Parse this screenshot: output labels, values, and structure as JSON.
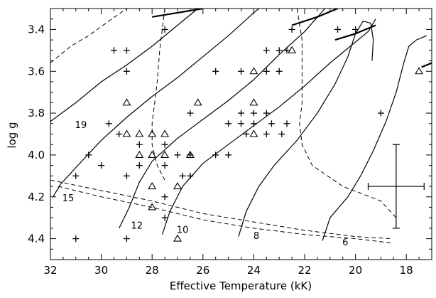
{
  "chart_data": {
    "type": "scatter",
    "title": "",
    "xlabel": "Effective Temperature (kK)",
    "ylabel": "log g",
    "xlim": [
      32,
      17
    ],
    "ylim": [
      3.3,
      4.5
    ],
    "x_reversed": true,
    "y_reversed": true,
    "x_ticks": [
      32,
      30,
      28,
      26,
      24,
      22,
      20,
      18
    ],
    "y_ticks": [
      3.4,
      3.6,
      3.8,
      4.0,
      4.2,
      4.4
    ],
    "y_tick_labels": [
      "3.4",
      "3.6",
      "3.8",
      "4.0",
      "4.2",
      "4.4"
    ],
    "grid": false,
    "legend": "none",
    "series": [
      {
        "marker": "plus",
        "points": [
          [
            29.5,
            3.5
          ],
          [
            29.0,
            3.5
          ],
          [
            29.0,
            3.6
          ],
          [
            27.5,
            3.4
          ],
          [
            22.5,
            3.4
          ],
          [
            23.0,
            3.5
          ],
          [
            22.7,
            3.5
          ],
          [
            20.7,
            3.4
          ],
          [
            20.0,
            3.4
          ],
          [
            23.5,
            3.5
          ],
          [
            25.5,
            3.6
          ],
          [
            24.5,
            3.6
          ],
          [
            23.5,
            3.6
          ],
          [
            23.0,
            3.6
          ],
          [
            29.7,
            3.85
          ],
          [
            29.3,
            3.9
          ],
          [
            27.5,
            3.95
          ],
          [
            28.5,
            3.95
          ],
          [
            27.5,
            4.05
          ],
          [
            26.5,
            3.8
          ],
          [
            24.5,
            3.8
          ],
          [
            24.0,
            3.8
          ],
          [
            23.5,
            3.8
          ],
          [
            24.5,
            3.85
          ],
          [
            24.0,
            3.85
          ],
          [
            23.3,
            3.85
          ],
          [
            22.7,
            3.85
          ],
          [
            25.0,
            3.85
          ],
          [
            24.3,
            3.9
          ],
          [
            23.5,
            3.9
          ],
          [
            22.9,
            3.9
          ],
          [
            30.5,
            4.0
          ],
          [
            30.0,
            4.05
          ],
          [
            31.0,
            4.1
          ],
          [
            29.0,
            4.1
          ],
          [
            28.5,
            4.05
          ],
          [
            27.0,
            4.0
          ],
          [
            26.5,
            4.0
          ],
          [
            26.8,
            4.1
          ],
          [
            26.5,
            4.1
          ],
          [
            25.5,
            4.0
          ],
          [
            25.0,
            4.0
          ],
          [
            27.5,
            4.2
          ],
          [
            27.5,
            4.3
          ],
          [
            31.0,
            4.4
          ],
          [
            29.0,
            4.4
          ],
          [
            19.0,
            3.8
          ]
        ]
      },
      {
        "marker": "triangle",
        "points": [
          [
            24.0,
            3.6
          ],
          [
            22.5,
            3.5
          ],
          [
            17.5,
            3.6
          ],
          [
            29.0,
            3.75
          ],
          [
            26.2,
            3.75
          ],
          [
            24.0,
            3.75
          ],
          [
            29.0,
            3.9
          ],
          [
            28.5,
            3.9
          ],
          [
            28.0,
            3.9
          ],
          [
            27.5,
            3.9
          ],
          [
            24.0,
            3.9
          ],
          [
            28.5,
            4.0
          ],
          [
            28.0,
            4.0
          ],
          [
            27.5,
            4.0
          ],
          [
            26.5,
            4.0
          ],
          [
            27.0,
            4.15
          ],
          [
            28.0,
            4.15
          ],
          [
            28.0,
            4.25
          ],
          [
            27.0,
            4.4
          ]
        ]
      }
    ],
    "evolutionary_tracks": [
      {
        "label": "19",
        "points": [
          [
            32.0,
            3.84
          ],
          [
            31.0,
            3.75
          ],
          [
            30.0,
            3.65
          ],
          [
            29.0,
            3.57
          ],
          [
            28.0,
            3.48
          ],
          [
            27.0,
            3.38
          ],
          [
            26.2,
            3.3
          ]
        ]
      },
      {
        "label": "15",
        "points": [
          [
            31.9,
            4.2
          ],
          [
            31.6,
            4.14
          ],
          [
            31.0,
            4.06
          ],
          [
            30.0,
            3.93
          ],
          [
            29.0,
            3.82
          ],
          [
            28.0,
            3.72
          ],
          [
            27.0,
            3.63
          ],
          [
            26.0,
            3.53
          ],
          [
            25.0,
            3.43
          ],
          [
            24.0,
            3.32
          ],
          [
            23.8,
            3.3
          ]
        ]
      },
      {
        "label": "12",
        "points": [
          [
            29.3,
            4.35
          ],
          [
            28.9,
            4.25
          ],
          [
            28.5,
            4.13
          ],
          [
            28.0,
            4.03
          ],
          [
            27.0,
            3.92
          ],
          [
            26.0,
            3.83
          ],
          [
            25.0,
            3.74
          ],
          [
            24.0,
            3.64
          ],
          [
            23.0,
            3.52
          ],
          [
            22.0,
            3.41
          ],
          [
            21.2,
            3.3
          ]
        ]
      },
      {
        "label": "10",
        "points": [
          [
            27.6,
            4.38
          ],
          [
            27.3,
            4.27
          ],
          [
            26.8,
            4.15
          ],
          [
            26.0,
            4.04
          ],
          [
            25.0,
            3.95
          ],
          [
            24.0,
            3.86
          ],
          [
            23.0,
            3.77
          ],
          [
            22.0,
            3.67
          ],
          [
            21.0,
            3.56
          ],
          [
            20.0,
            3.46
          ],
          [
            19.5,
            3.41
          ],
          [
            19.2,
            3.35
          ]
        ]
      },
      {
        "label": "8",
        "points": [
          [
            24.6,
            4.39
          ],
          [
            24.3,
            4.27
          ],
          [
            23.8,
            4.15
          ],
          [
            23.2,
            4.05
          ],
          [
            22.3,
            3.93
          ],
          [
            21.5,
            3.8
          ],
          [
            20.8,
            3.66
          ],
          [
            20.3,
            3.53
          ],
          [
            20.0,
            3.42
          ],
          [
            19.7,
            3.36
          ],
          [
            19.4,
            3.37
          ],
          [
            19.3,
            3.45
          ],
          [
            19.35,
            3.55
          ]
        ]
      },
      {
        "label": "6",
        "points": [
          [
            21.3,
            4.41
          ],
          [
            21.0,
            4.3
          ],
          [
            20.3,
            4.2
          ],
          [
            19.8,
            4.1
          ],
          [
            19.3,
            3.98
          ],
          [
            18.8,
            3.84
          ],
          [
            18.4,
            3.7
          ],
          [
            18.1,
            3.56
          ],
          [
            17.9,
            3.48
          ],
          [
            17.6,
            3.45
          ],
          [
            17.2,
            3.43
          ]
        ]
      }
    ],
    "upper_track_segments": [
      [
        [
          28.0,
          3.34
        ],
        [
          27.0,
          3.32
        ],
        [
          26.0,
          3.3
        ]
      ],
      [
        [
          22.5,
          3.38
        ],
        [
          21.5,
          3.34
        ],
        [
          20.7,
          3.3
        ]
      ],
      [
        [
          20.8,
          3.45
        ],
        [
          20.0,
          3.42
        ],
        [
          19.2,
          3.38
        ]
      ],
      [
        [
          17.4,
          3.58
        ],
        [
          17.0,
          3.56
        ]
      ]
    ],
    "isochrones": [
      [
        [
          32.0,
          3.56
        ],
        [
          31.2,
          3.48
        ],
        [
          30.5,
          3.43
        ],
        [
          29.7,
          3.36
        ],
        [
          29.0,
          3.3
        ]
      ],
      [
        [
          27.5,
          3.3
        ],
        [
          27.7,
          3.5
        ],
        [
          27.8,
          3.65
        ],
        [
          27.9,
          3.75
        ],
        [
          28.0,
          3.85
        ],
        [
          28.0,
          3.95
        ],
        [
          27.8,
          4.05
        ],
        [
          27.5,
          4.12
        ]
      ],
      [
        [
          22.3,
          3.3
        ],
        [
          22.1,
          3.45
        ],
        [
          22.1,
          3.6
        ],
        [
          22.1,
          3.75
        ],
        [
          22.2,
          3.85
        ],
        [
          22.1,
          3.95
        ],
        [
          21.7,
          4.05
        ],
        [
          20.5,
          4.15
        ],
        [
          19.0,
          4.22
        ],
        [
          18.4,
          4.3
        ]
      ],
      [
        [
          32.0,
          4.12
        ],
        [
          30.0,
          4.17
        ],
        [
          28.0,
          4.22
        ],
        [
          26.0,
          4.28
        ],
        [
          24.0,
          4.32
        ],
        [
          22.0,
          4.36
        ],
        [
          20.0,
          4.39
        ],
        [
          18.6,
          4.4
        ]
      ],
      [
        [
          31.7,
          4.15
        ],
        [
          30.0,
          4.2
        ],
        [
          28.0,
          4.25
        ],
        [
          26.0,
          4.31
        ],
        [
          24.0,
          4.35
        ],
        [
          22.0,
          4.38
        ],
        [
          20.0,
          4.4
        ],
        [
          18.6,
          4.42
        ]
      ]
    ],
    "error_bar": {
      "x": 18.4,
      "y": 4.15,
      "x_halfwidth": 1.1,
      "y_halfwidth": 0.2
    }
  }
}
